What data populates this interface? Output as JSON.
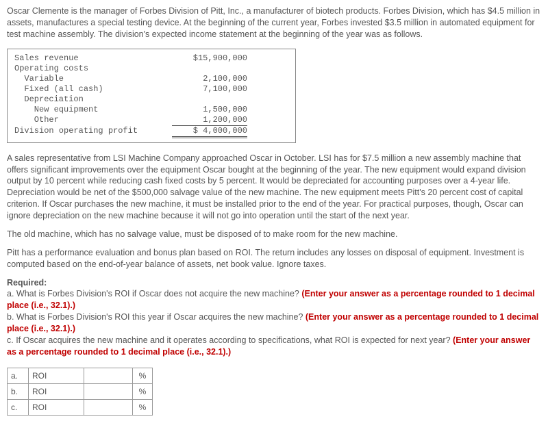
{
  "intro": "Oscar Clemente is the manager of Forbes Division of Pitt, Inc., a manufacturer of biotech products. Forbes Division, which has $4.5 million in assets, manufactures a special testing device. At the beginning of the current year, Forbes invested $3.5 million in automated equipment for test machine assembly. The division's expected income statement at the beginning of the year was as follows.",
  "stmt": {
    "r0": {
      "label": "Sales revenue",
      "val": "$15,900,000"
    },
    "r1": {
      "label": "Operating costs",
      "val": ""
    },
    "r2": {
      "label": "  Variable",
      "val": "2,100,000"
    },
    "r3": {
      "label": "  Fixed (all cash)",
      "val": "7,100,000"
    },
    "r4": {
      "label": "  Depreciation",
      "val": ""
    },
    "r5": {
      "label": "    New equipment",
      "val": "1,500,000"
    },
    "r6": {
      "label": "    Other",
      "val": "1,200,000"
    },
    "r7": {
      "label": "Division operating profit",
      "val": "$ 4,000,000"
    }
  },
  "para1": "A sales representative from LSI Machine Company approached Oscar in October. LSI has for $7.5 million a new assembly machine that offers significant improvements over the equipment Oscar bought at the beginning of the year. The new equipment would expand division output by 10 percent while reducing cash fixed costs by 5 percent. It would be depreciated for accounting purposes over a 4-year life. Depreciation would be net of the $500,000 salvage value of the new machine. The new equipment meets Pitt's 20 percent cost of capital criterion. If Oscar purchases the new machine, it must be installed prior to the end of the year. For practical purposes, though, Oscar can ignore depreciation on the new machine because it will not go into operation until the start of the next year.",
  "para2": "The old machine, which has no salvage value, must be disposed of to make room for the new machine.",
  "para3": "Pitt has a performance evaluation and bonus plan based on ROI. The return includes any losses on disposal of equipment. Investment is computed based on the end-of-year balance of assets, net book value. Ignore taxes.",
  "req": {
    "heading": "Required:",
    "a_text": "a. What is Forbes Division's ROI if Oscar does not acquire the new machine? ",
    "a_red": "(Enter your answer as a percentage rounded to 1 decimal place (i.e., 32.1).)",
    "b_text": "b. What is Forbes Division's ROI this year if Oscar acquires the new machine? ",
    "b_red": "(Enter your answer as a percentage rounded to 1 decimal place (i.e., 32.1).)",
    "c_text": "c. If Oscar acquires the new machine and it operates according to specifications, what ROI is expected for next year? ",
    "c_red": "(Enter your answer as a percentage rounded to 1 decimal place (i.e., 32.1).)"
  },
  "answers": {
    "a": {
      "label": "a.",
      "name": "ROI",
      "pct": "%"
    },
    "b": {
      "label": "b.",
      "name": "ROI",
      "pct": "%"
    },
    "c": {
      "label": "c.",
      "name": "ROI",
      "pct": "%"
    }
  }
}
